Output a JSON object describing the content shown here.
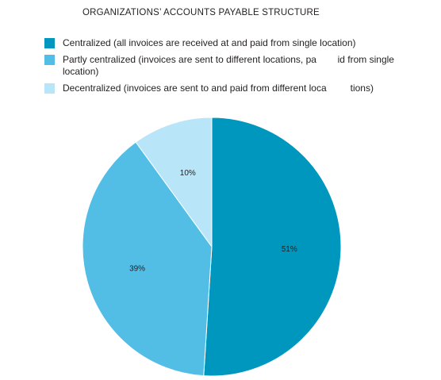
{
  "chart_data": {
    "type": "pie",
    "title": "ORGANIZATIONS’ ACCOUNTS PAYABLE STRUCTURE",
    "legend_position": "top",
    "slices": [
      {
        "name": "Centralized (all invoices are received at and paid from single location)",
        "value": 51,
        "label": "51%",
        "color": "#0097be"
      },
      {
        "name": "Partly centralized (invoices are sent to different locations, pa        id from single location)",
        "value": 39,
        "label": "39%",
        "color": "#52bee6"
      },
      {
        "name": "Decentralized (invoices are sent to and paid from different loca         tions)",
        "value": 10,
        "label": "10%",
        "color": "#b9e5f9"
      }
    ]
  }
}
